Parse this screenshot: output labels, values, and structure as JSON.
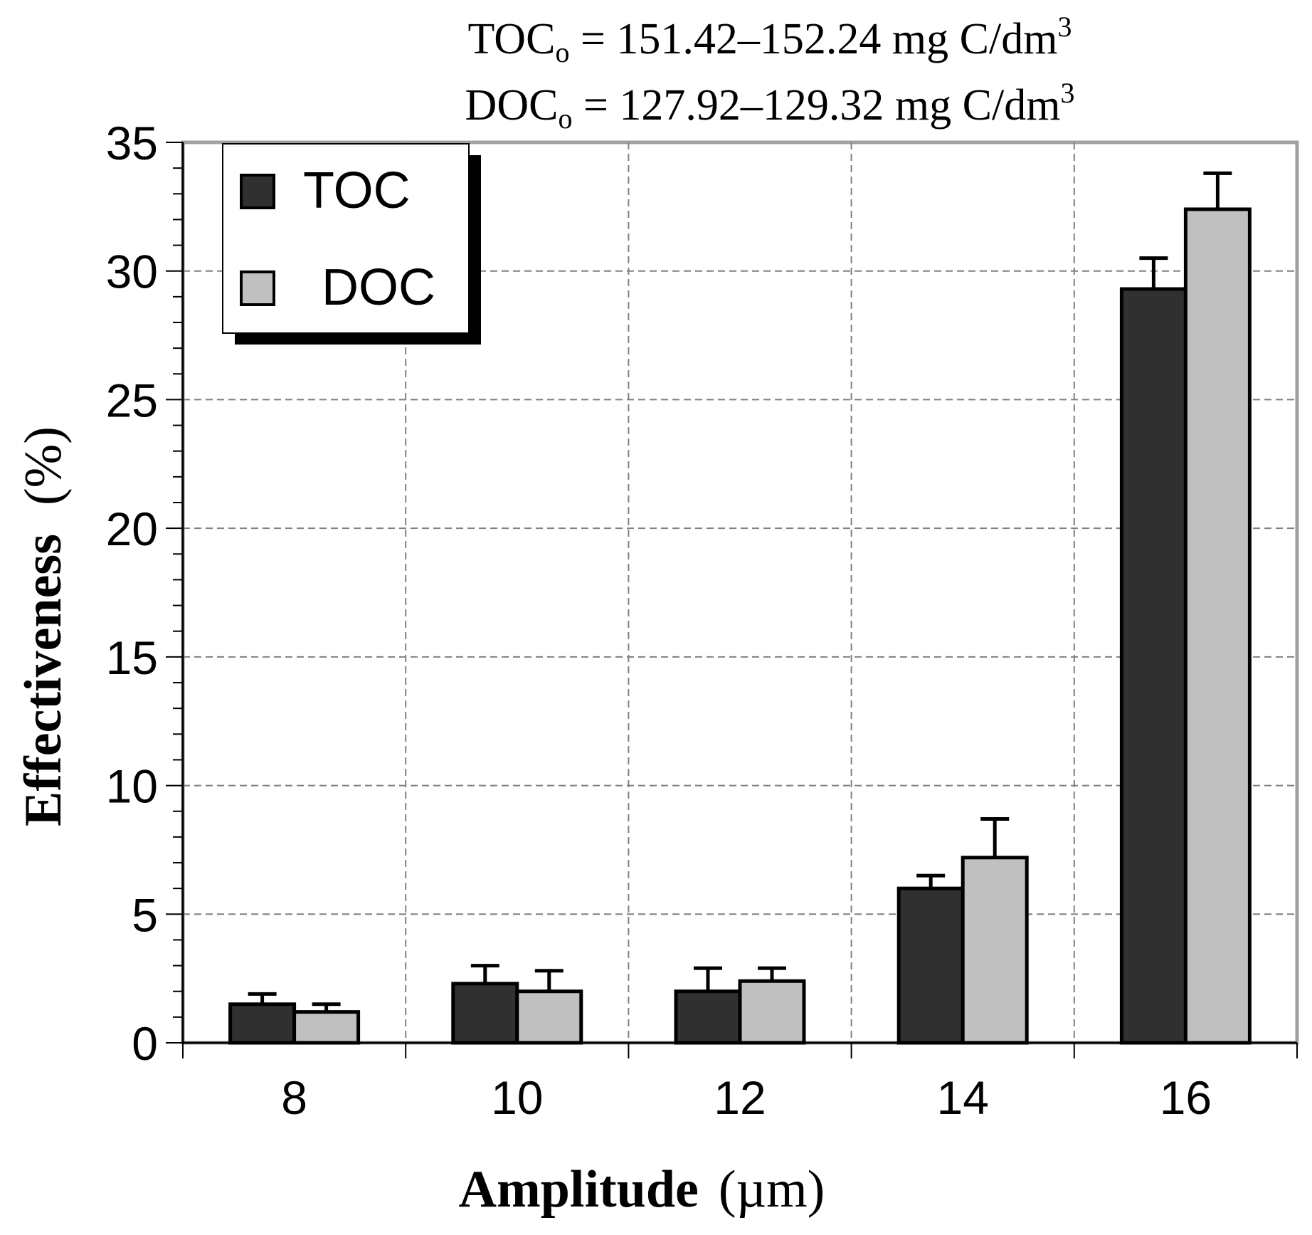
{
  "chart_data": {
    "type": "bar",
    "title_lines": [
      {
        "main": "TOC",
        "sub": "o",
        "rest": " = 151.42–152.24 mg C/dm",
        "sup": "3"
      },
      {
        "main": "DOC",
        "sub": "o",
        "rest": " = 127.92–129.32 mg C/dm",
        "sup": "3"
      }
    ],
    "xlabel_bold": "Amplitude",
    "xlabel_unit": "(µm)",
    "ylabel_bold": "Effectiveness",
    "ylabel_unit": "(%)",
    "categories": [
      "8",
      "10",
      "12",
      "14",
      "16"
    ],
    "yticks": [
      "0",
      "5",
      "10",
      "15",
      "20",
      "25",
      "30",
      "35"
    ],
    "ylim": [
      0,
      35
    ],
    "grid": true,
    "legend_position": "top-left",
    "series": [
      {
        "name": "TOC",
        "color": "#303030",
        "values": [
          1.5,
          2.3,
          2.0,
          6.0,
          29.3
        ],
        "errors": [
          0.4,
          0.7,
          0.9,
          0.5,
          1.2
        ]
      },
      {
        "name": "DOC",
        "color": "#c0c0c0",
        "values": [
          1.2,
          2.0,
          2.4,
          7.2,
          32.4
        ],
        "errors": [
          0.3,
          0.8,
          0.5,
          1.5,
          1.4
        ]
      }
    ]
  }
}
